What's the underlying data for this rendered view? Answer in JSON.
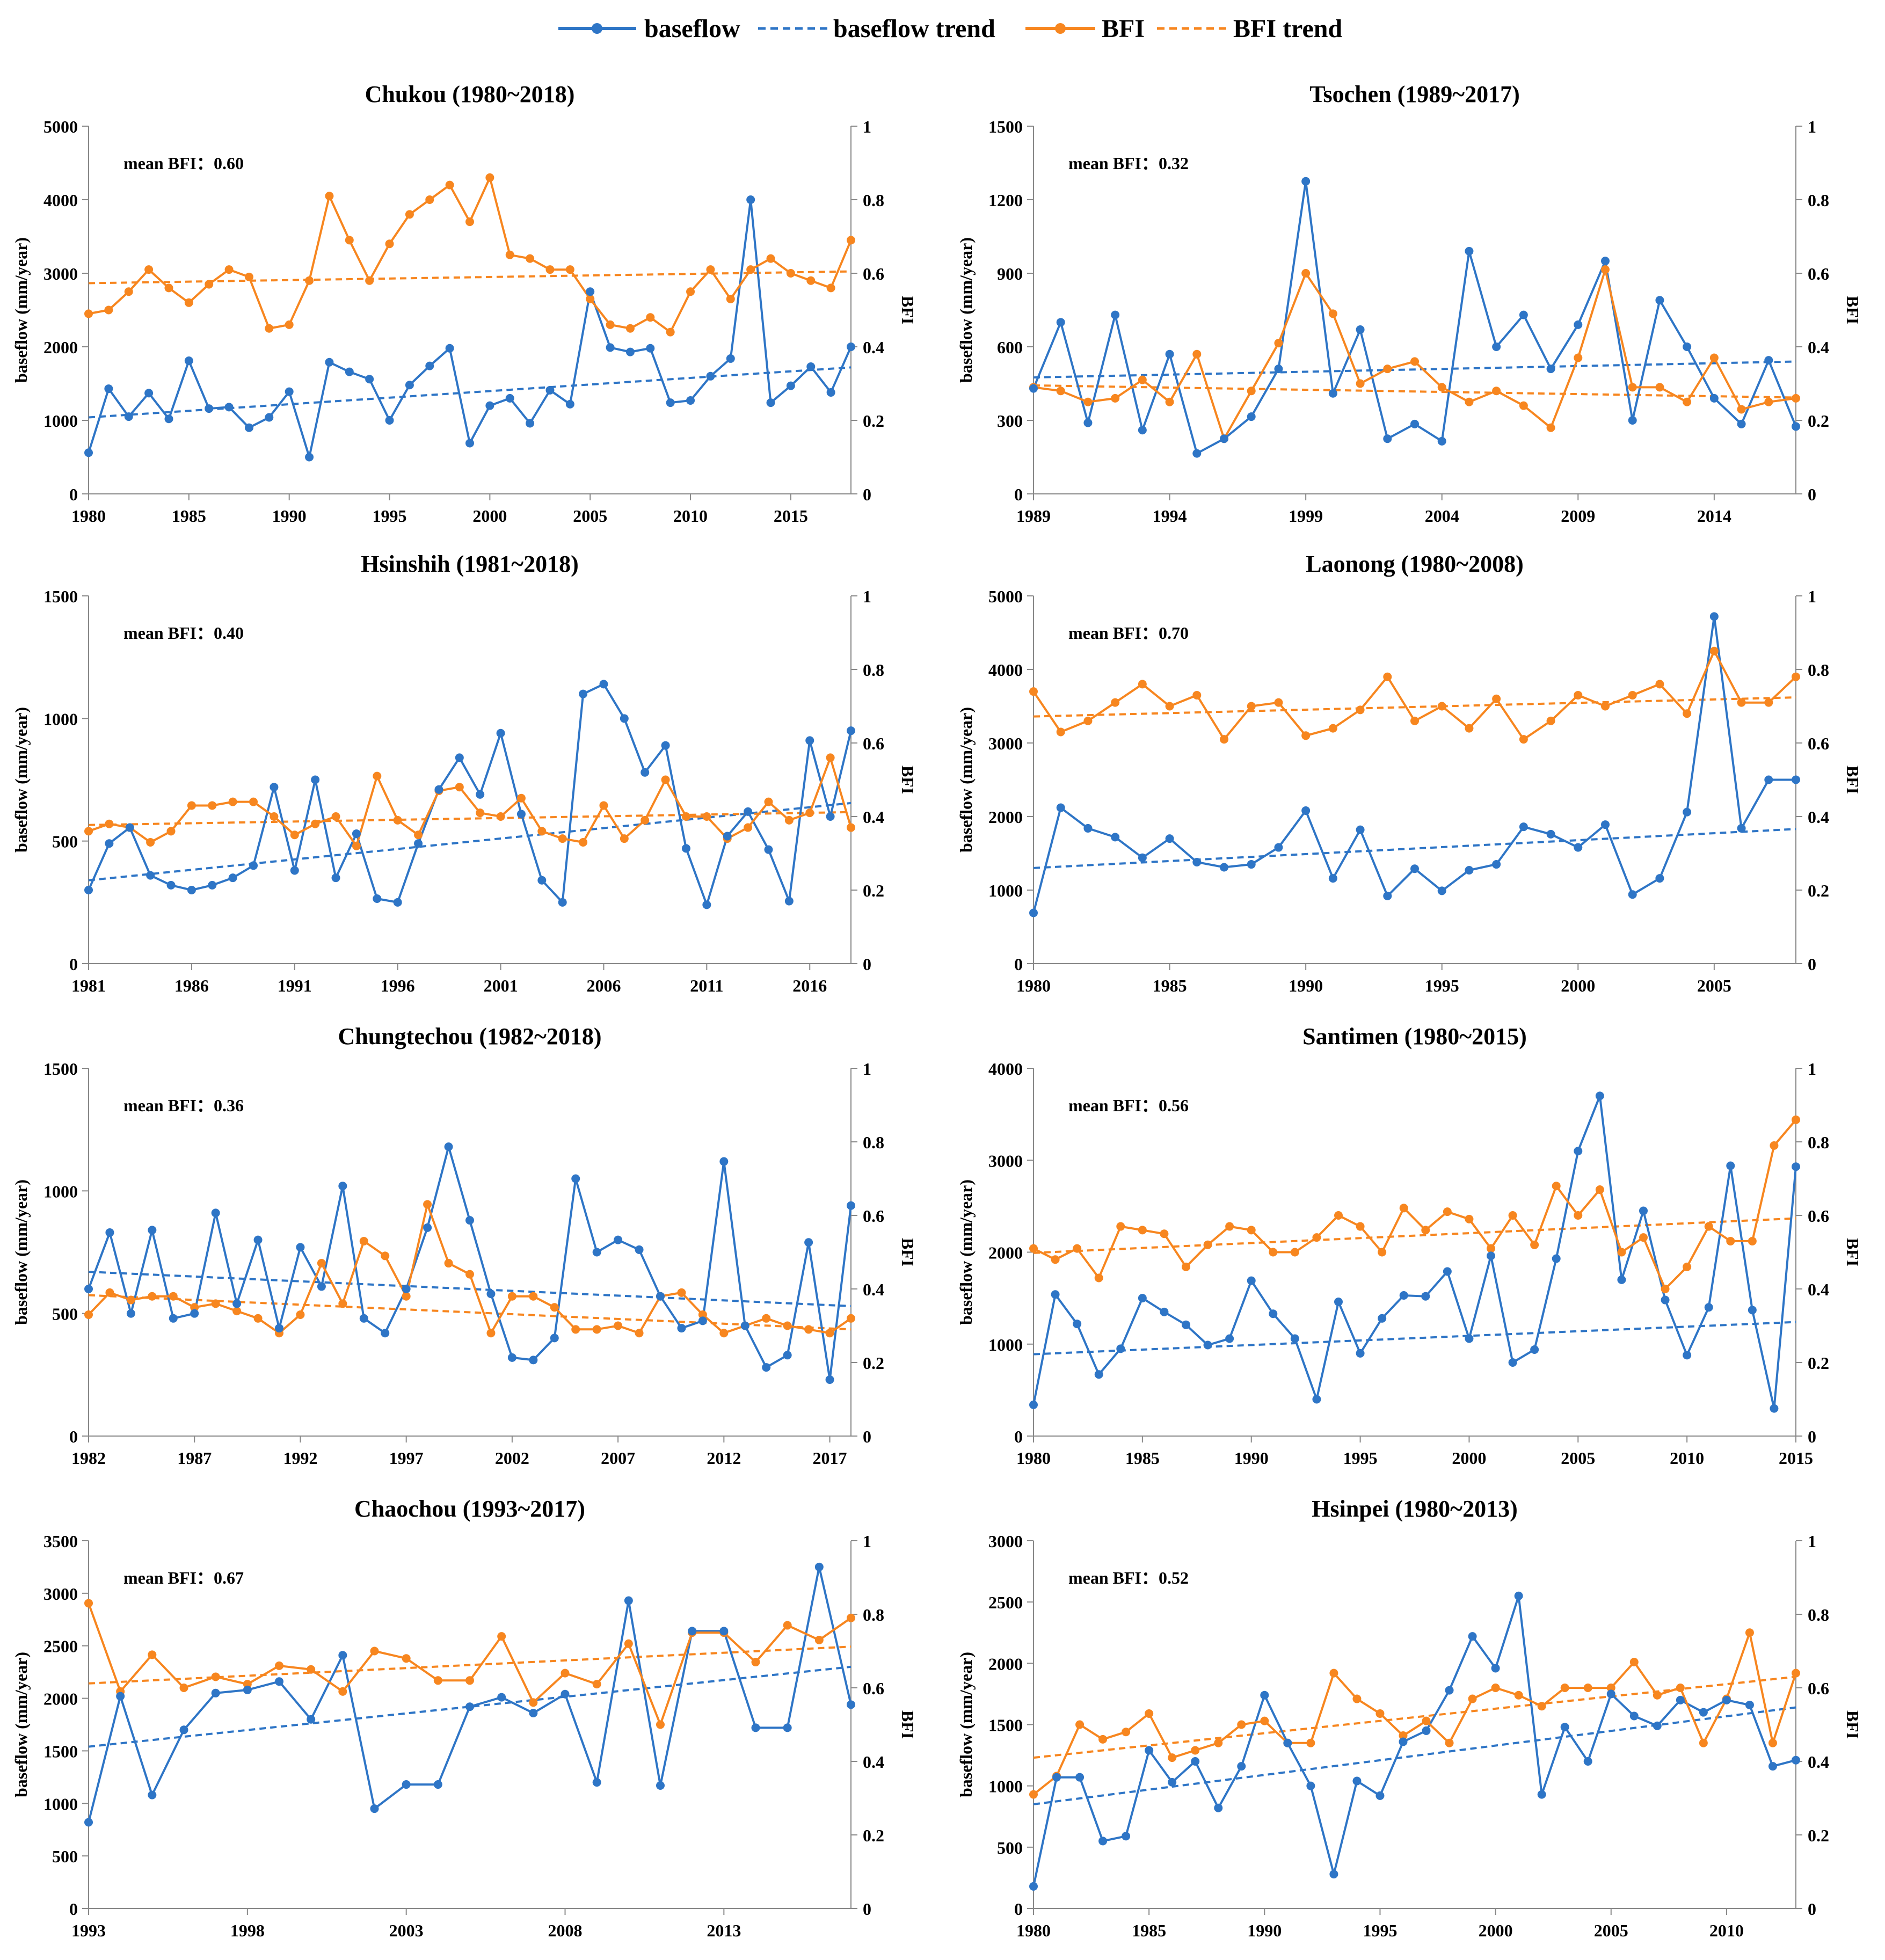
{
  "legend": {
    "baseflow": "baseflow",
    "baseflow_trend": "baseflow trend",
    "bfi": "BFI",
    "bfi_trend": "BFI trend"
  },
  "colors": {
    "baseflow": "#2E75C6",
    "bfi": "#F7861F",
    "axis": "#888888",
    "text": "#000000"
  },
  "chart_data": [
    {
      "type": "line",
      "title": "Chukou (1980~2018)",
      "annotation": "mean BFI：0.60",
      "ylabel": "baseflow (mm/year)",
      "y2label": "BFI",
      "xlim": [
        1980,
        2018
      ],
      "xticks": [
        1980,
        1985,
        1990,
        1995,
        2000,
        2005,
        2010,
        2015
      ],
      "ylim": [
        0,
        5000
      ],
      "yticks": [
        0,
        1000,
        2000,
        3000,
        4000,
        5000
      ],
      "y2lim": [
        0,
        1
      ],
      "y2ticks": [
        "0",
        "0.2",
        "0.4",
        "0.6",
        "0.8",
        "1"
      ],
      "x_start": 1980,
      "baseflow": [
        560,
        1430,
        1050,
        1370,
        1020,
        1810,
        1160,
        1180,
        900,
        1040,
        1390,
        500,
        1790,
        1660,
        1560,
        1000,
        1480,
        1740,
        1980,
        690,
        1200,
        1300,
        960,
        1410,
        1220,
        2750,
        1990,
        1930,
        1980,
        1240,
        1270,
        1600,
        1840,
        4000,
        1240,
        1470,
        1730,
        1380,
        2000
      ],
      "bfi": [
        0.49,
        0.5,
        0.55,
        0.61,
        0.56,
        0.52,
        0.57,
        0.61,
        0.59,
        0.45,
        0.46,
        0.58,
        0.81,
        0.69,
        0.58,
        0.68,
        0.76,
        0.8,
        0.84,
        0.74,
        0.86,
        0.65,
        0.64,
        0.61,
        0.61,
        0.53,
        0.46,
        0.45,
        0.48,
        0.44,
        0.55,
        0.61,
        0.53,
        0.61,
        0.64,
        0.6,
        0.58,
        0.56,
        0.69
      ],
      "baseflow_trend": [
        1040,
        1720
      ],
      "bfi_trend": [
        0.573,
        0.605
      ]
    },
    {
      "type": "line",
      "title": "Tsochen (1989~2017)",
      "annotation": "mean BFI：0.32",
      "ylabel": "baseflow (mm/year)",
      "y2label": "BFI",
      "xlim": [
        1989,
        2017
      ],
      "xticks": [
        1989,
        1994,
        1999,
        2004,
        2009,
        2014
      ],
      "ylim": [
        0,
        1500
      ],
      "yticks": [
        0,
        300,
        600,
        900,
        1200,
        1500
      ],
      "y2lim": [
        0,
        1
      ],
      "y2ticks": [
        "0",
        "0.2",
        "0.4",
        "0.6",
        "0.8",
        "1"
      ],
      "x_start": 1989,
      "baseflow": [
        430,
        700,
        290,
        730,
        260,
        570,
        165,
        225,
        315,
        510,
        1275,
        410,
        670,
        225,
        285,
        215,
        990,
        600,
        730,
        510,
        690,
        950,
        300,
        790,
        600,
        390,
        285,
        545,
        275
      ],
      "bfi": [
        0.29,
        0.28,
        0.25,
        0.26,
        0.31,
        0.25,
        0.38,
        0.15,
        0.28,
        0.41,
        0.6,
        0.49,
        0.3,
        0.34,
        0.36,
        0.29,
        0.25,
        0.28,
        0.24,
        0.18,
        0.37,
        0.61,
        0.29,
        0.29,
        0.25,
        0.37,
        0.23,
        0.25,
        0.26
      ],
      "baseflow_trend": [
        475,
        540
      ],
      "bfi_trend": [
        0.295,
        0.262
      ]
    },
    {
      "type": "line",
      "title": "Hsinshih (1981~2018)",
      "annotation": "mean BFI：0.40",
      "ylabel": "baseflow (mm/year)",
      "y2label": "BFI",
      "xlim": [
        1981,
        2018
      ],
      "xticks": [
        1981,
        1986,
        1991,
        1996,
        2001,
        2006,
        2011,
        2016
      ],
      "ylim": [
        0,
        1500
      ],
      "yticks": [
        0,
        500,
        1000,
        1500
      ],
      "y2lim": [
        0,
        1
      ],
      "y2ticks": [
        "0",
        "0.2",
        "0.4",
        "0.6",
        "0.8",
        "1"
      ],
      "x_start": 1981,
      "baseflow": [
        300,
        490,
        555,
        360,
        320,
        300,
        320,
        350,
        400,
        720,
        380,
        750,
        350,
        530,
        265,
        250,
        490,
        710,
        840,
        690,
        940,
        610,
        340,
        250,
        1100,
        1140,
        1000,
        780,
        890,
        470,
        240,
        520,
        620,
        465,
        255,
        910,
        600,
        950
      ],
      "bfi": [
        0.36,
        0.38,
        0.37,
        0.33,
        0.36,
        0.43,
        0.43,
        0.44,
        0.44,
        0.4,
        0.35,
        0.38,
        0.4,
        0.32,
        0.51,
        0.39,
        0.35,
        0.47,
        0.48,
        0.41,
        0.4,
        0.45,
        0.36,
        0.34,
        0.33,
        0.43,
        0.34,
        0.39,
        0.5,
        0.4,
        0.4,
        0.34,
        0.37,
        0.44,
        0.39,
        0.41,
        0.56,
        0.37
      ],
      "baseflow_trend": [
        340,
        655
      ],
      "bfi_trend": [
        0.377,
        0.412
      ]
    },
    {
      "type": "line",
      "title": "Laonong (1980~2008)",
      "annotation": "mean BFI：0.70",
      "ylabel": "baseflow (mm/year)",
      "y2label": "BFI",
      "xlim": [
        1980,
        2008
      ],
      "xticks": [
        1980,
        1985,
        1990,
        1995,
        2000,
        2005
      ],
      "ylim": [
        0,
        5000
      ],
      "yticks": [
        0,
        1000,
        2000,
        3000,
        4000,
        5000
      ],
      "y2lim": [
        0,
        1
      ],
      "y2ticks": [
        "0",
        "0.2",
        "0.4",
        "0.6",
        "0.8",
        "1"
      ],
      "x_start": 1980,
      "baseflow": [
        690,
        2120,
        1840,
        1720,
        1440,
        1700,
        1380,
        1310,
        1350,
        1580,
        2080,
        1160,
        1820,
        920,
        1290,
        990,
        1270,
        1350,
        1860,
        1760,
        1580,
        1890,
        940,
        1160,
        2060,
        4720,
        1840,
        2500,
        2500
      ],
      "bfi": [
        0.74,
        0.63,
        0.66,
        0.71,
        0.76,
        0.7,
        0.73,
        0.61,
        0.7,
        0.71,
        0.62,
        0.64,
        0.69,
        0.78,
        0.66,
        0.7,
        0.64,
        0.72,
        0.61,
        0.66,
        0.73,
        0.7,
        0.73,
        0.76,
        0.68,
        0.85,
        0.71,
        0.71,
        0.78
      ],
      "baseflow_trend": [
        1300,
        1830
      ],
      "bfi_trend": [
        0.672,
        0.724
      ]
    },
    {
      "type": "line",
      "title": "Chungtechou (1982~2018)",
      "annotation": "mean BFI：0.36",
      "ylabel": "baseflow (mm/year)",
      "y2label": "BFI",
      "xlim": [
        1982,
        2018
      ],
      "xticks": [
        1982,
        1987,
        1992,
        1997,
        2002,
        2007,
        2012,
        2017
      ],
      "ylim": [
        0,
        1500
      ],
      "yticks": [
        0,
        500,
        1000,
        1500
      ],
      "y2lim": [
        0,
        1
      ],
      "y2ticks": [
        "0",
        "0.2",
        "0.4",
        "0.6",
        "0.8",
        "1"
      ],
      "x_start": 1982,
      "baseflow": [
        600,
        830,
        500,
        840,
        480,
        500,
        910,
        540,
        800,
        440,
        770,
        610,
        1020,
        480,
        420,
        600,
        850,
        1180,
        880,
        580,
        320,
        310,
        400,
        1050,
        750,
        800,
        760,
        570,
        440,
        470,
        1120,
        450,
        280,
        330,
        790,
        230,
        940
      ],
      "bfi": [
        0.33,
        0.39,
        0.37,
        0.38,
        0.38,
        0.35,
        0.36,
        0.34,
        0.32,
        0.28,
        0.33,
        0.47,
        0.36,
        0.53,
        0.49,
        0.38,
        0.63,
        0.47,
        0.44,
        0.28,
        0.38,
        0.38,
        0.35,
        0.29,
        0.29,
        0.3,
        0.28,
        0.38,
        0.39,
        0.33,
        0.28,
        0.3,
        0.32,
        0.3,
        0.29,
        0.28,
        0.32
      ],
      "baseflow_trend": [
        670,
        530
      ],
      "bfi_trend": [
        0.383,
        0.29
      ]
    },
    {
      "type": "line",
      "title": "Santimen (1980~2015)",
      "annotation": "mean BFI：0.56",
      "ylabel": "baseflow (mm/year)",
      "y2label": "BFI",
      "xlim": [
        1980,
        2015
      ],
      "xticks": [
        1980,
        1985,
        1990,
        1995,
        2000,
        2005,
        2010,
        2015
      ],
      "ylim": [
        0,
        4000
      ],
      "yticks": [
        0,
        1000,
        2000,
        3000,
        4000
      ],
      "y2lim": [
        0,
        1
      ],
      "y2ticks": [
        "0",
        "0.2",
        "0.4",
        "0.6",
        "0.8",
        "1"
      ],
      "x_start": 1980,
      "baseflow": [
        340,
        1540,
        1220,
        670,
        950,
        1500,
        1350,
        1210,
        990,
        1060,
        1690,
        1330,
        1060,
        400,
        1460,
        900,
        1280,
        1530,
        1520,
        1790,
        1060,
        1960,
        800,
        940,
        1930,
        3100,
        3700,
        1700,
        2450,
        1480,
        880,
        1400,
        2940,
        1370,
        300,
        2930
      ],
      "bfi": [
        0.51,
        0.48,
        0.51,
        0.43,
        0.57,
        0.56,
        0.55,
        0.46,
        0.52,
        0.57,
        0.56,
        0.5,
        0.5,
        0.54,
        0.6,
        0.57,
        0.5,
        0.62,
        0.56,
        0.61,
        0.59,
        0.51,
        0.6,
        0.52,
        0.68,
        0.6,
        0.67,
        0.5,
        0.54,
        0.4,
        0.46,
        0.57,
        0.53,
        0.53,
        0.79,
        0.86
      ],
      "baseflow_trend": [
        890,
        1240
      ],
      "bfi_trend": [
        0.498,
        0.592
      ]
    },
    {
      "type": "line",
      "title": "Chaochou (1993~2017)",
      "annotation": "mean BFI：0.67",
      "ylabel": "baseflow (mm/year)",
      "y2label": "BFI",
      "xlim": [
        1993,
        2017
      ],
      "xticks": [
        1993,
        1998,
        2003,
        2008,
        2013
      ],
      "ylim": [
        0,
        3500
      ],
      "yticks": [
        0,
        500,
        1000,
        1500,
        2000,
        2500,
        3000,
        3500
      ],
      "y2lim": [
        0,
        1
      ],
      "y2ticks": [
        "0",
        "0.2",
        "0.4",
        "0.6",
        "0.8",
        "1"
      ],
      "x_start": 1993,
      "baseflow": [
        820,
        2020,
        1080,
        1700,
        2050,
        2080,
        2160,
        1800,
        2410,
        950,
        1180,
        1180,
        1920,
        2010,
        1860,
        2040,
        1200,
        2930,
        1170,
        2640,
        2640,
        1720,
        1720,
        3250,
        1940
      ],
      "bfi": [
        0.83,
        0.59,
        0.69,
        0.6,
        0.63,
        0.61,
        0.66,
        0.65,
        0.59,
        0.7,
        0.68,
        0.62,
        0.62,
        0.74,
        0.56,
        0.64,
        0.61,
        0.72,
        0.5,
        0.75,
        0.75,
        0.67,
        0.77,
        0.73,
        0.79
      ],
      "baseflow_trend": [
        1540,
        2300
      ],
      "bfi_trend": [
        0.612,
        0.712
      ]
    },
    {
      "type": "line",
      "title": "Hsinpei (1980~2013)",
      "annotation": "mean BFI：0.52",
      "ylabel": "baseflow (mm/year)",
      "y2label": "BFI",
      "xlim": [
        1980,
        2013
      ],
      "xticks": [
        1980,
        1985,
        1990,
        1995,
        2000,
        2005,
        2010
      ],
      "ylim": [
        0,
        3000
      ],
      "yticks": [
        0,
        500,
        1000,
        1500,
        2000,
        2500,
        3000
      ],
      "y2lim": [
        0,
        1
      ],
      "y2ticks": [
        "0",
        "0.2",
        "0.4",
        "0.6",
        "0.8",
        "1"
      ],
      "x_start": 1980,
      "baseflow": [
        180,
        1070,
        1070,
        550,
        590,
        1290,
        1030,
        1200,
        820,
        1160,
        1740,
        1350,
        1000,
        280,
        1040,
        920,
        1360,
        1450,
        1780,
        2220,
        1960,
        2550,
        930,
        1480,
        1200,
        1750,
        1570,
        1490,
        1700,
        1600,
        1700,
        1660,
        1160,
        1210
      ],
      "bfi": [
        0.31,
        0.36,
        0.5,
        0.46,
        0.48,
        0.53,
        0.41,
        0.43,
        0.45,
        0.5,
        0.51,
        0.45,
        0.45,
        0.64,
        0.57,
        0.53,
        0.47,
        0.51,
        0.45,
        0.57,
        0.6,
        0.58,
        0.55,
        0.6,
        0.6,
        0.6,
        0.67,
        0.58,
        0.6,
        0.45,
        0.57,
        0.75,
        0.45,
        0.64
      ],
      "baseflow_trend": [
        850,
        1640
      ],
      "bfi_trend": [
        0.41,
        0.63
      ]
    }
  ]
}
